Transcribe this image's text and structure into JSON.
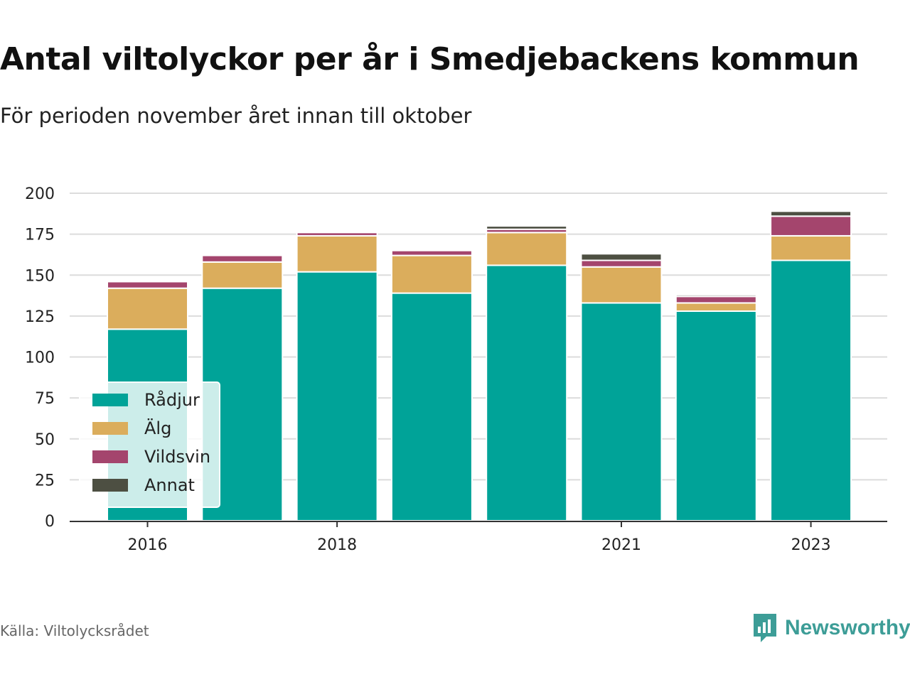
{
  "header": {
    "title": "Antal viltolyckor per år i Smedjebackens kommun",
    "subtitle": "För perioden november året innan till oktober"
  },
  "footer": {
    "source": "Källa: Viltolycksrådet",
    "brand": "Newsworthy",
    "brand_icon": "newsworthy-logo-icon"
  },
  "chart_data": {
    "type": "bar",
    "stacked": true,
    "title": "Antal viltolyckor per år i Smedjebackens kommun",
    "subtitle": "För perioden november året innan till oktober",
    "xlabel": "",
    "ylabel": "",
    "categories": [
      "2016",
      "2017",
      "2018",
      "2019",
      "2020",
      "2021",
      "2022",
      "2023"
    ],
    "x_tick_labels": [
      "2016",
      "2018",
      "2021",
      "2023"
    ],
    "ylim": [
      0,
      200
    ],
    "y_ticks": [
      0,
      25,
      50,
      75,
      100,
      125,
      150,
      175,
      200
    ],
    "grid": true,
    "legend_position": "bottom-left",
    "series": [
      {
        "name": "Rådjur",
        "color": "#00a398",
        "values": [
          117,
          142,
          152,
          139,
          156,
          133,
          128,
          159
        ]
      },
      {
        "name": "Älg",
        "color": "#dbad5c",
        "values": [
          25,
          16,
          22,
          23,
          20,
          22,
          5,
          15
        ]
      },
      {
        "name": "Vildsvin",
        "color": "#a4456d",
        "values": [
          4,
          4,
          2,
          3,
          2,
          4,
          4,
          12
        ]
      },
      {
        "name": "Annat",
        "color": "#4d4f42",
        "values": [
          0,
          0,
          0,
          0,
          2,
          4,
          1,
          3
        ]
      }
    ]
  }
}
